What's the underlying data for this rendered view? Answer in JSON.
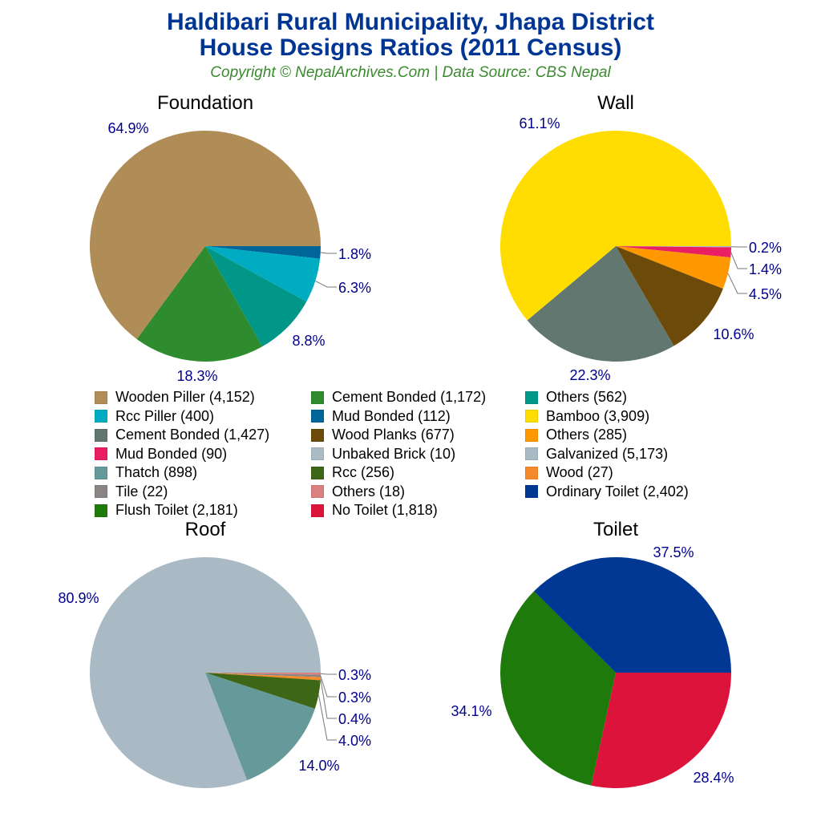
{
  "header": {
    "title_line1": "Haldibari Rural Municipality, Jhapa District",
    "title_line2": "House Designs Ratios (2011 Census)",
    "subtitle": "Copyright © NepalArchives.Com | Data Source: CBS Nepal"
  },
  "colors": {
    "title": "#003594",
    "subtitle": "#3b8a2f",
    "pct_label": "#00008b"
  },
  "legend": [
    {
      "label": "Wooden Piller (4,152)",
      "color": "#b08d57"
    },
    {
      "label": "Cement Bonded (1,172)",
      "color": "#2e8b2e"
    },
    {
      "label": "Others (562)",
      "color": "#009688"
    },
    {
      "label": "Rcc Piller (400)",
      "color": "#00acc1"
    },
    {
      "label": "Mud Bonded (112)",
      "color": "#006699"
    },
    {
      "label": "Bamboo (3,909)",
      "color": "#ffdd00"
    },
    {
      "label": "Cement Bonded (1,427)",
      "color": "#62776f"
    },
    {
      "label": "Wood Planks (677)",
      "color": "#6b4a0a"
    },
    {
      "label": "Others (285)",
      "color": "#ff9800"
    },
    {
      "label": "Mud Bonded (90)",
      "color": "#e91e63"
    },
    {
      "label": "Unbaked Brick (10)",
      "color": "#aabbc5"
    },
    {
      "label": "Galvanized (5,173)",
      "color": "#a9bac4"
    },
    {
      "label": "Thatch (898)",
      "color": "#669999"
    },
    {
      "label": "Rcc (256)",
      "color": "#3d6616"
    },
    {
      "label": "Wood (27)",
      "color": "#f68a2b"
    },
    {
      "label": "Tile (22)",
      "color": "#8a8582"
    },
    {
      "label": "Others (18)",
      "color": "#d98080"
    },
    {
      "label": "Ordinary Toilet (2,402)",
      "color": "#003893"
    },
    {
      "label": "Flush Toilet (2,181)",
      "color": "#1f7a0c"
    },
    {
      "label": "No Toilet (1,818)",
      "color": "#dc143c"
    }
  ],
  "chart_data": [
    {
      "type": "pie",
      "title": "Foundation",
      "categories": [
        "Wooden Piller",
        "Cement Bonded",
        "Others",
        "Rcc Piller",
        "Mud Bonded"
      ],
      "values": [
        4152,
        1172,
        562,
        400,
        112
      ],
      "percent_labels": [
        "64.9%",
        "18.3%",
        "8.8%",
        "6.3%",
        "1.8%"
      ],
      "colors": [
        "#b08d57",
        "#2e8b2e",
        "#009688",
        "#00acc1",
        "#006699"
      ]
    },
    {
      "type": "pie",
      "title": "Wall",
      "categories": [
        "Bamboo",
        "Cement Bonded",
        "Wood Planks",
        "Others",
        "Mud Bonded",
        "Unbaked Brick"
      ],
      "values": [
        3909,
        1427,
        677,
        285,
        90,
        10
      ],
      "percent_labels": [
        "61.1%",
        "22.3%",
        "10.6%",
        "4.5%",
        "1.4%",
        "0.2%"
      ],
      "colors": [
        "#ffdd00",
        "#62776f",
        "#6b4a0a",
        "#ff9800",
        "#e91e63",
        "#aabbc5"
      ]
    },
    {
      "type": "pie",
      "title": "Roof",
      "categories": [
        "Galvanized",
        "Thatch",
        "Rcc",
        "Wood",
        "Tile",
        "Others"
      ],
      "values": [
        5173,
        898,
        256,
        27,
        22,
        18
      ],
      "percent_labels": [
        "80.9%",
        "14.0%",
        "4.0%",
        "0.4%",
        "0.3%",
        "0.3%"
      ],
      "colors": [
        "#a9bac4",
        "#669999",
        "#3d6616",
        "#f68a2b",
        "#8a8582",
        "#d98080"
      ]
    },
    {
      "type": "pie",
      "title": "Toilet",
      "categories": [
        "Ordinary Toilet",
        "Flush Toilet",
        "No Toilet"
      ],
      "values": [
        2402,
        2181,
        1818
      ],
      "percent_labels": [
        "37.5%",
        "34.1%",
        "28.4%"
      ],
      "colors": [
        "#003893",
        "#1f7a0c",
        "#dc143c"
      ]
    }
  ]
}
